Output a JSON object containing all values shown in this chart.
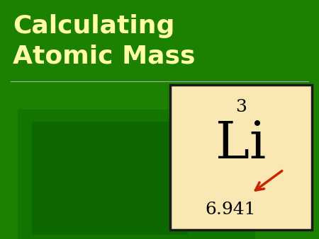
{
  "title_line1": "Calculating",
  "title_line2": "Atomic Mass",
  "title_color": "#FFFFAA",
  "bg_color_main": "#1c8000",
  "bg_rect1_color": "#187000",
  "bg_rect2_color": "#0e6600",
  "bg_rect3_color": "#0a5a00",
  "element_box_color": "#FAE8B4",
  "element_box_border": "#1a1a1a",
  "atomic_number": "3",
  "element_symbol": "Li",
  "atomic_mass": "6.941",
  "text_color_dark": "#000000",
  "arrow_color": "#cc2200",
  "sep_line_color": "#aaaaaa",
  "title_fontsize": 26,
  "atomic_number_fontsize": 18,
  "element_symbol_fontsize": 52,
  "atomic_mass_fontsize": 18
}
